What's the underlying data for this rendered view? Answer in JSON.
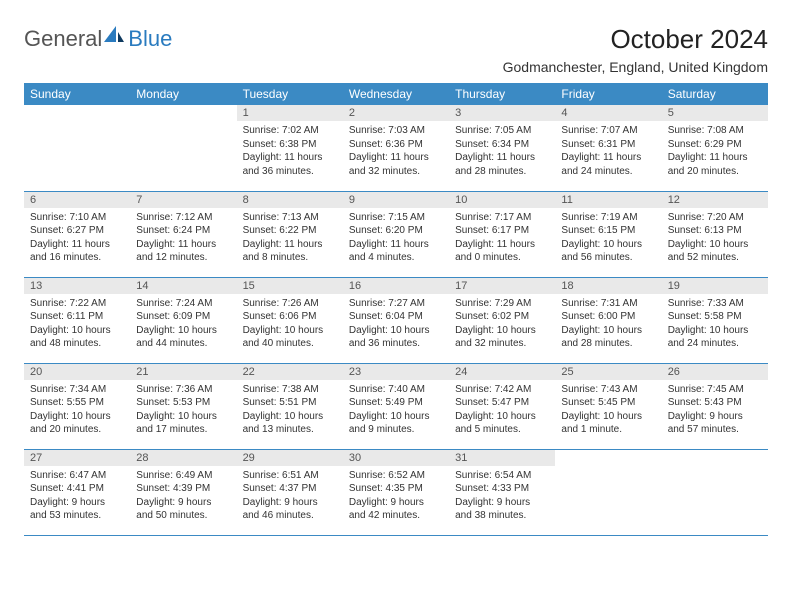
{
  "logo": {
    "general": "General",
    "blue": "Blue"
  },
  "title": "October 2024",
  "location": "Godmanchester, England, United Kingdom",
  "colors": {
    "header_bg": "#3b8ac4",
    "header_text": "#ffffff",
    "daynum_bg": "#e9e9e9",
    "border": "#3b8ac4",
    "logo_blue": "#2a7bbf",
    "logo_dark": "#0f3a5f"
  },
  "weekdays": [
    "Sunday",
    "Monday",
    "Tuesday",
    "Wednesday",
    "Thursday",
    "Friday",
    "Saturday"
  ],
  "weeks": [
    [
      null,
      null,
      {
        "n": "1",
        "sr": "Sunrise: 7:02 AM",
        "ss": "Sunset: 6:38 PM",
        "dl": "Daylight: 11 hours and 36 minutes."
      },
      {
        "n": "2",
        "sr": "Sunrise: 7:03 AM",
        "ss": "Sunset: 6:36 PM",
        "dl": "Daylight: 11 hours and 32 minutes."
      },
      {
        "n": "3",
        "sr": "Sunrise: 7:05 AM",
        "ss": "Sunset: 6:34 PM",
        "dl": "Daylight: 11 hours and 28 minutes."
      },
      {
        "n": "4",
        "sr": "Sunrise: 7:07 AM",
        "ss": "Sunset: 6:31 PM",
        "dl": "Daylight: 11 hours and 24 minutes."
      },
      {
        "n": "5",
        "sr": "Sunrise: 7:08 AM",
        "ss": "Sunset: 6:29 PM",
        "dl": "Daylight: 11 hours and 20 minutes."
      }
    ],
    [
      {
        "n": "6",
        "sr": "Sunrise: 7:10 AM",
        "ss": "Sunset: 6:27 PM",
        "dl": "Daylight: 11 hours and 16 minutes."
      },
      {
        "n": "7",
        "sr": "Sunrise: 7:12 AM",
        "ss": "Sunset: 6:24 PM",
        "dl": "Daylight: 11 hours and 12 minutes."
      },
      {
        "n": "8",
        "sr": "Sunrise: 7:13 AM",
        "ss": "Sunset: 6:22 PM",
        "dl": "Daylight: 11 hours and 8 minutes."
      },
      {
        "n": "9",
        "sr": "Sunrise: 7:15 AM",
        "ss": "Sunset: 6:20 PM",
        "dl": "Daylight: 11 hours and 4 minutes."
      },
      {
        "n": "10",
        "sr": "Sunrise: 7:17 AM",
        "ss": "Sunset: 6:17 PM",
        "dl": "Daylight: 11 hours and 0 minutes."
      },
      {
        "n": "11",
        "sr": "Sunrise: 7:19 AM",
        "ss": "Sunset: 6:15 PM",
        "dl": "Daylight: 10 hours and 56 minutes."
      },
      {
        "n": "12",
        "sr": "Sunrise: 7:20 AM",
        "ss": "Sunset: 6:13 PM",
        "dl": "Daylight: 10 hours and 52 minutes."
      }
    ],
    [
      {
        "n": "13",
        "sr": "Sunrise: 7:22 AM",
        "ss": "Sunset: 6:11 PM",
        "dl": "Daylight: 10 hours and 48 minutes."
      },
      {
        "n": "14",
        "sr": "Sunrise: 7:24 AM",
        "ss": "Sunset: 6:09 PM",
        "dl": "Daylight: 10 hours and 44 minutes."
      },
      {
        "n": "15",
        "sr": "Sunrise: 7:26 AM",
        "ss": "Sunset: 6:06 PM",
        "dl": "Daylight: 10 hours and 40 minutes."
      },
      {
        "n": "16",
        "sr": "Sunrise: 7:27 AM",
        "ss": "Sunset: 6:04 PM",
        "dl": "Daylight: 10 hours and 36 minutes."
      },
      {
        "n": "17",
        "sr": "Sunrise: 7:29 AM",
        "ss": "Sunset: 6:02 PM",
        "dl": "Daylight: 10 hours and 32 minutes."
      },
      {
        "n": "18",
        "sr": "Sunrise: 7:31 AM",
        "ss": "Sunset: 6:00 PM",
        "dl": "Daylight: 10 hours and 28 minutes."
      },
      {
        "n": "19",
        "sr": "Sunrise: 7:33 AM",
        "ss": "Sunset: 5:58 PM",
        "dl": "Daylight: 10 hours and 24 minutes."
      }
    ],
    [
      {
        "n": "20",
        "sr": "Sunrise: 7:34 AM",
        "ss": "Sunset: 5:55 PM",
        "dl": "Daylight: 10 hours and 20 minutes."
      },
      {
        "n": "21",
        "sr": "Sunrise: 7:36 AM",
        "ss": "Sunset: 5:53 PM",
        "dl": "Daylight: 10 hours and 17 minutes."
      },
      {
        "n": "22",
        "sr": "Sunrise: 7:38 AM",
        "ss": "Sunset: 5:51 PM",
        "dl": "Daylight: 10 hours and 13 minutes."
      },
      {
        "n": "23",
        "sr": "Sunrise: 7:40 AM",
        "ss": "Sunset: 5:49 PM",
        "dl": "Daylight: 10 hours and 9 minutes."
      },
      {
        "n": "24",
        "sr": "Sunrise: 7:42 AM",
        "ss": "Sunset: 5:47 PM",
        "dl": "Daylight: 10 hours and 5 minutes."
      },
      {
        "n": "25",
        "sr": "Sunrise: 7:43 AM",
        "ss": "Sunset: 5:45 PM",
        "dl": "Daylight: 10 hours and 1 minute."
      },
      {
        "n": "26",
        "sr": "Sunrise: 7:45 AM",
        "ss": "Sunset: 5:43 PM",
        "dl": "Daylight: 9 hours and 57 minutes."
      }
    ],
    [
      {
        "n": "27",
        "sr": "Sunrise: 6:47 AM",
        "ss": "Sunset: 4:41 PM",
        "dl": "Daylight: 9 hours and 53 minutes."
      },
      {
        "n": "28",
        "sr": "Sunrise: 6:49 AM",
        "ss": "Sunset: 4:39 PM",
        "dl": "Daylight: 9 hours and 50 minutes."
      },
      {
        "n": "29",
        "sr": "Sunrise: 6:51 AM",
        "ss": "Sunset: 4:37 PM",
        "dl": "Daylight: 9 hours and 46 minutes."
      },
      {
        "n": "30",
        "sr": "Sunrise: 6:52 AM",
        "ss": "Sunset: 4:35 PM",
        "dl": "Daylight: 9 hours and 42 minutes."
      },
      {
        "n": "31",
        "sr": "Sunrise: 6:54 AM",
        "ss": "Sunset: 4:33 PM",
        "dl": "Daylight: 9 hours and 38 minutes."
      },
      null,
      null
    ]
  ]
}
